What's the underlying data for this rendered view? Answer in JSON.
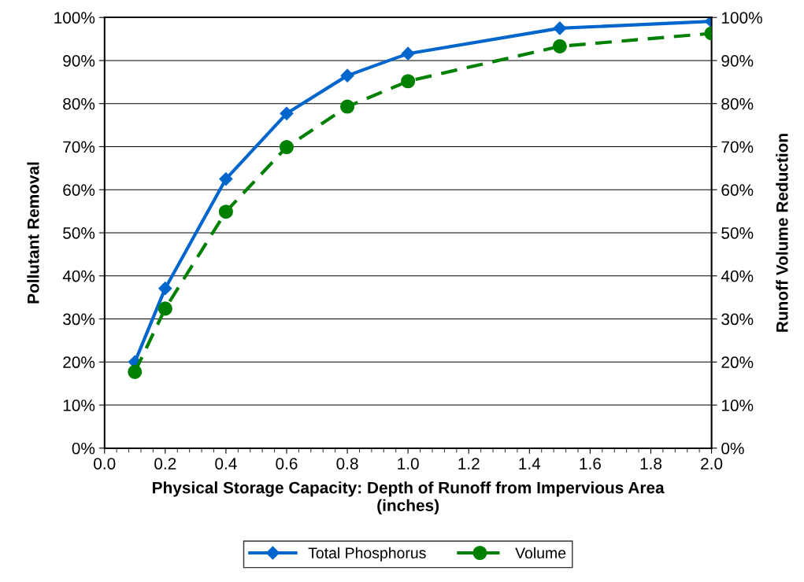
{
  "chart_data": {
    "type": "line",
    "xlabel": "Physical Storage Capacity: Depth of Runoff from Impervious Area\n(inches)",
    "ylabel": "Pollutant Removal",
    "y2label": "Runoff Volume Reduction",
    "x": [
      0.1,
      0.2,
      0.4,
      0.6,
      0.8,
      1.0,
      1.5,
      2.0
    ],
    "series": [
      {
        "name": "Total Phosphorus",
        "color": "#0066cc",
        "marker": "diamond",
        "line_style": "solid",
        "values": [
          20.0,
          37.1,
          62.5,
          77.7,
          86.5,
          91.6,
          97.5,
          99.1
        ]
      },
      {
        "name": "Volume",
        "color": "#008000",
        "marker": "circle",
        "line_style": "dashed",
        "axis": "y2",
        "values": [
          17.7,
          32.4,
          54.9,
          69.9,
          79.3,
          85.2,
          93.3,
          96.3
        ]
      }
    ],
    "xlim": [
      0,
      2
    ],
    "xticks": [
      {
        "value": 0,
        "label": "0.0"
      },
      {
        "value": 0.2,
        "label": "0.2"
      },
      {
        "value": 0.4,
        "label": "0.4"
      },
      {
        "value": 0.6,
        "label": "0.6"
      },
      {
        "value": 0.8,
        "label": "0.8"
      },
      {
        "value": 1.0,
        "label": "1.0"
      },
      {
        "value": 1.2,
        "label": "1.2"
      },
      {
        "value": 1.4,
        "label": "1.4"
      },
      {
        "value": 1.6,
        "label": "1.6"
      },
      {
        "value": 1.8,
        "label": "1.8"
      },
      {
        "value": 2.0,
        "label": "2.0"
      }
    ],
    "ylim": [
      0,
      100
    ],
    "yticks": [
      {
        "value": 0,
        "label": "0%"
      },
      {
        "value": 10,
        "label": "10%"
      },
      {
        "value": 20,
        "label": "20%"
      },
      {
        "value": 30,
        "label": "30%"
      },
      {
        "value": 40,
        "label": "40%"
      },
      {
        "value": 50,
        "label": "50%"
      },
      {
        "value": 60,
        "label": "60%"
      },
      {
        "value": 70,
        "label": "70%"
      },
      {
        "value": 80,
        "label": "80%"
      },
      {
        "value": 90,
        "label": "90%"
      },
      {
        "value": 100,
        "label": "100%"
      }
    ],
    "y2lim": [
      0,
      100
    ],
    "y2ticks": [
      {
        "value": 0,
        "label": "0%"
      },
      {
        "value": 10,
        "label": "10%"
      },
      {
        "value": 20,
        "label": "20%"
      },
      {
        "value": 30,
        "label": "30%"
      },
      {
        "value": 40,
        "label": "40%"
      },
      {
        "value": 50,
        "label": "50%"
      },
      {
        "value": 60,
        "label": "60%"
      },
      {
        "value": 70,
        "label": "70%"
      },
      {
        "value": 80,
        "label": "80%"
      },
      {
        "value": 90,
        "label": "90%"
      },
      {
        "value": 100,
        "label": "100%"
      }
    ],
    "grid": "y",
    "legend": "bottom"
  }
}
